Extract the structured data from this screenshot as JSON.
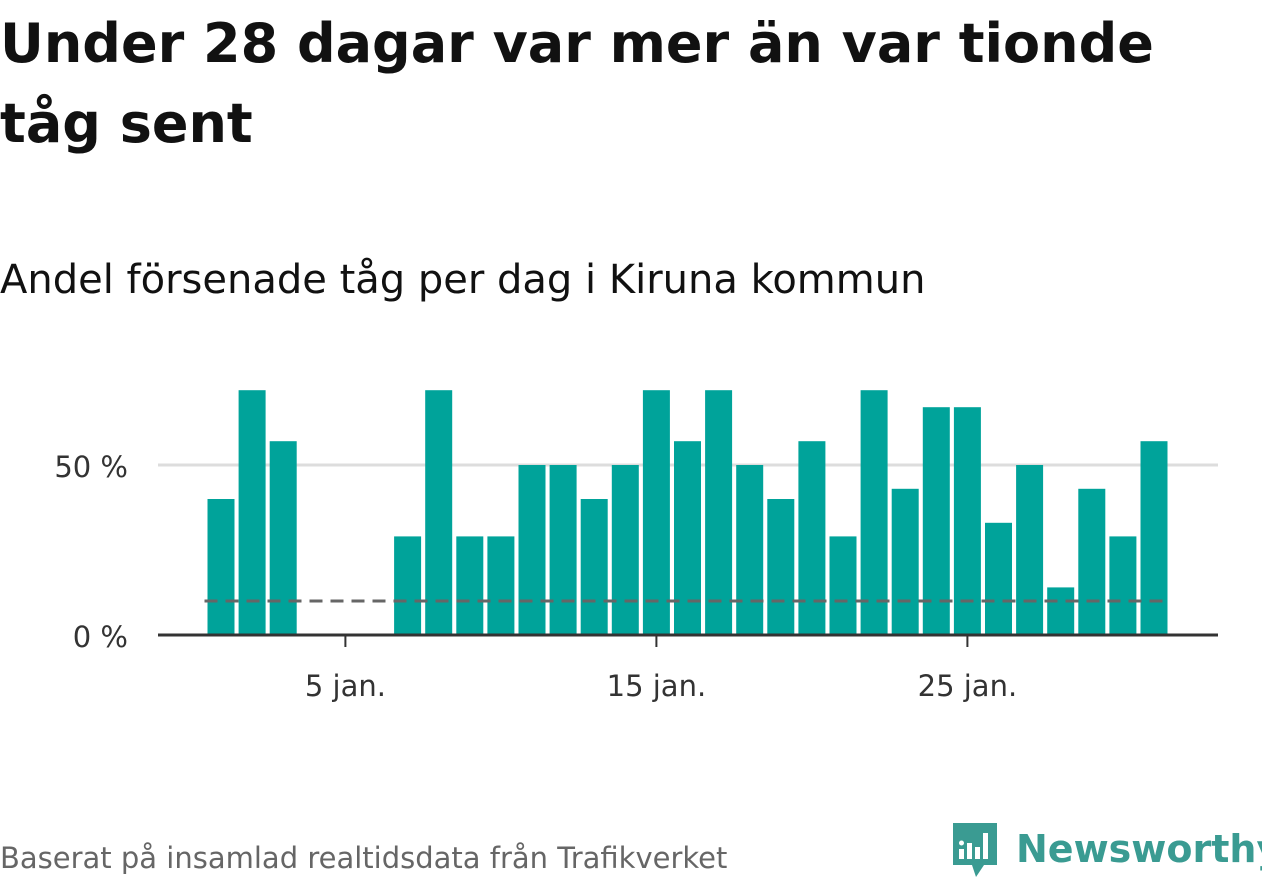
{
  "title": "Under 28 dagar var mer än var tionde tåg sent",
  "subtitle": "Andel försenade tåg per dag i Kiruna kommun",
  "footer": "Baserat på insamlad realtidsdata från Trafikverket",
  "brand": "Newsworthy",
  "colors": {
    "bar": "#00a39a",
    "reference": "#666666",
    "grid": "#dddddd",
    "axis": "#333333",
    "brand": "#3a9b92"
  },
  "chart_data": {
    "type": "bar",
    "x": [
      1,
      2,
      3,
      4,
      5,
      6,
      7,
      8,
      9,
      10,
      11,
      12,
      13,
      14,
      15,
      16,
      17,
      18,
      19,
      20,
      21,
      22,
      23,
      24,
      25,
      26,
      27,
      28,
      29,
      30,
      31
    ],
    "values": [
      40,
      72,
      57,
      0,
      0,
      0,
      29,
      72,
      29,
      29,
      50,
      50,
      40,
      50,
      72,
      57,
      72,
      50,
      40,
      57,
      29,
      72,
      43,
      67,
      67,
      33,
      50,
      14,
      43,
      29,
      57
    ],
    "reference_line": 10,
    "ylim": [
      0,
      80
    ],
    "yticks": [
      0,
      50
    ],
    "ytick_labels": [
      "0 %",
      "50 %"
    ],
    "xticks": [
      5,
      15,
      25
    ],
    "xtick_labels": [
      "5 jan.",
      "15 jan.",
      "25 jan."
    ],
    "grid": true,
    "legend": "none"
  }
}
